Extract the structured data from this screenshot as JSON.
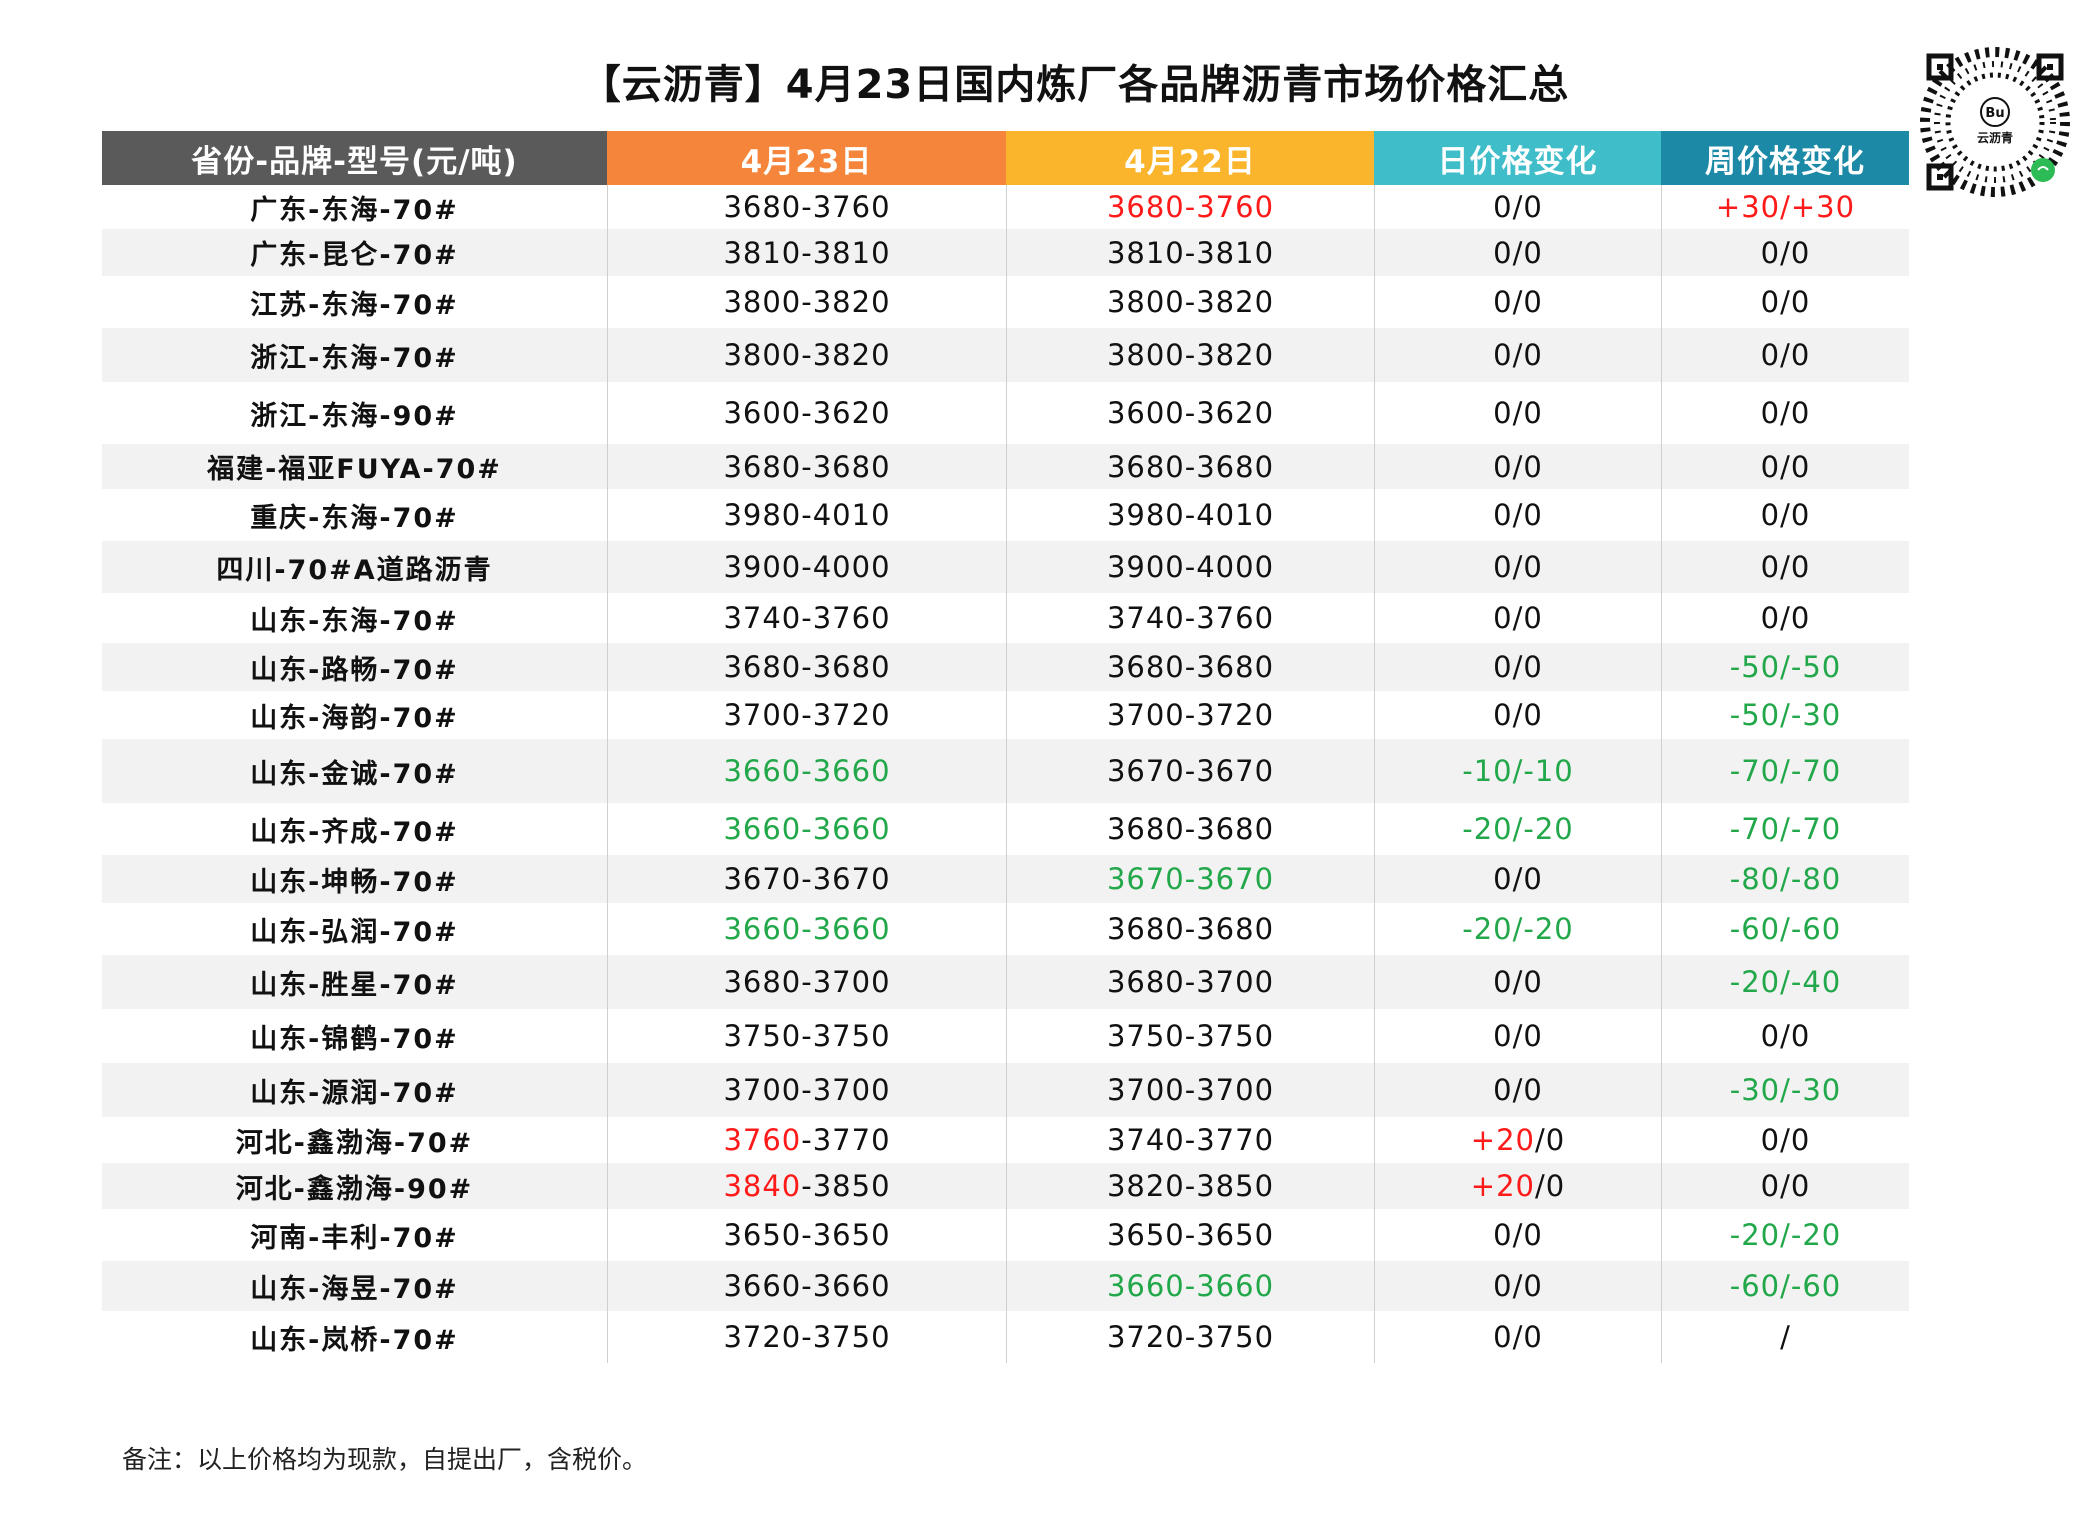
{
  "title": "【云沥青】4月23日国内炼厂各品牌沥青市场价格汇总",
  "qr": {
    "brand": "云沥青",
    "icon": "qr-code-icon"
  },
  "colors": {
    "header_col0": "#5a5a5a",
    "header_col1": "#f5853a",
    "header_col2": "#fbb52c",
    "header_col3": "#3fbdc9",
    "header_col4": "#1c89a6",
    "up": "#ff1a1a",
    "down": "#22a84a"
  },
  "headers": [
    "省份-品牌-型号(元/吨)",
    "4月23日",
    "4月22日",
    "日价格变化",
    "周价格变化"
  ],
  "rows": [
    {
      "label": "广东-东海-70#",
      "d23": [
        "3680-3760",
        "k"
      ],
      "d22": [
        "3680-3760",
        "r"
      ],
      "day": [
        "0/0",
        "k"
      ],
      "week": [
        "+30/+30",
        "r"
      ]
    },
    {
      "label": "广东-昆仑-70#",
      "d23": [
        "3810-3810",
        "k"
      ],
      "d22": [
        "3810-3810",
        "k"
      ],
      "day": [
        "0/0",
        "k"
      ],
      "week": [
        "0/0",
        "k"
      ]
    },
    {
      "label": "江苏-东海-70#",
      "d23": [
        "3800-3820",
        "k"
      ],
      "d22": [
        "3800-3820",
        "k"
      ],
      "day": [
        "0/0",
        "k"
      ],
      "week": [
        "0/0",
        "k"
      ]
    },
    {
      "label": "浙江-东海-70#",
      "d23": [
        "3800-3820",
        "k"
      ],
      "d22": [
        "3800-3820",
        "k"
      ],
      "day": [
        "0/0",
        "k"
      ],
      "week": [
        "0/0",
        "k"
      ]
    },
    {
      "label": "浙江-东海-90#",
      "d23": [
        "3600-3620",
        "k"
      ],
      "d22": [
        "3600-3620",
        "k"
      ],
      "day": [
        "0/0",
        "k"
      ],
      "week": [
        "0/0",
        "k"
      ]
    },
    {
      "label": "福建-福亚FUYA-70#",
      "d23": [
        "3680-3680",
        "k"
      ],
      "d22": [
        "3680-3680",
        "k"
      ],
      "day": [
        "0/0",
        "k"
      ],
      "week": [
        "0/0",
        "k"
      ]
    },
    {
      "label": "重庆-东海-70#",
      "d23": [
        "3980-4010",
        "k"
      ],
      "d22": [
        "3980-4010",
        "k"
      ],
      "day": [
        "0/0",
        "k"
      ],
      "week": [
        "0/0",
        "k"
      ]
    },
    {
      "label": "四川-70#A道路沥青",
      "d23": [
        "3900-4000",
        "k"
      ],
      "d22": [
        "3900-4000",
        "k"
      ],
      "day": [
        "0/0",
        "k"
      ],
      "week": [
        "0/0",
        "k"
      ]
    },
    {
      "label": "山东-东海-70#",
      "d23": [
        "3740-3760",
        "k"
      ],
      "d22": [
        "3740-3760",
        "k"
      ],
      "day": [
        "0/0",
        "k"
      ],
      "week": [
        "0/0",
        "k"
      ]
    },
    {
      "label": "山东-路畅-70#",
      "d23": [
        "3680-3680",
        "k"
      ],
      "d22": [
        "3680-3680",
        "k"
      ],
      "day": [
        "0/0",
        "k"
      ],
      "week": [
        "-50/-50",
        "g"
      ]
    },
    {
      "label": "山东-海韵-70#",
      "d23": [
        "3700-3720",
        "k"
      ],
      "d22": [
        "3700-3720",
        "k"
      ],
      "day": [
        "0/0",
        "k"
      ],
      "week": [
        "-50/-30",
        "g"
      ]
    },
    {
      "label": "山东-金诚-70#",
      "d23": [
        "3660-3660",
        "g"
      ],
      "d22": [
        "3670-3670",
        "k"
      ],
      "day": [
        "-10/-10",
        "g"
      ],
      "week": [
        "-70/-70",
        "g"
      ]
    },
    {
      "label": "山东-齐成-70#",
      "d23": [
        "3660-3660",
        "g"
      ],
      "d22": [
        "3680-3680",
        "k"
      ],
      "day": [
        "-20/-20",
        "g"
      ],
      "week": [
        "-70/-70",
        "g"
      ]
    },
    {
      "label": "山东-坤畅-70#",
      "d23": [
        "3670-3670",
        "k"
      ],
      "d22": [
        "3670-3670",
        "g"
      ],
      "day": [
        "0/0",
        "k"
      ],
      "week": [
        "-80/-80",
        "g"
      ]
    },
    {
      "label": "山东-弘润-70#",
      "d23": [
        "3660-3660",
        "g"
      ],
      "d22": [
        "3680-3680",
        "k"
      ],
      "day": [
        "-20/-20",
        "g"
      ],
      "week": [
        "-60/-60",
        "g"
      ]
    },
    {
      "label": "山东-胜星-70#",
      "d23": [
        "3680-3700",
        "k"
      ],
      "d22": [
        "3680-3700",
        "k"
      ],
      "day": [
        "0/0",
        "k"
      ],
      "week": [
        "-20/-40",
        "g"
      ]
    },
    {
      "label": "山东-锦鹤-70#",
      "d23": [
        "3750-3750",
        "k"
      ],
      "d22": [
        "3750-3750",
        "k"
      ],
      "day": [
        "0/0",
        "k"
      ],
      "week": [
        "0/0",
        "k"
      ]
    },
    {
      "label": "山东-源润-70#",
      "d23": [
        "3700-3700",
        "k"
      ],
      "d22": [
        "3700-3700",
        "k"
      ],
      "day": [
        "0/0",
        "k"
      ],
      "week": [
        "-30/-30",
        "g"
      ]
    },
    {
      "label": "河北-鑫渤海-70#",
      "d23": [
        "3760-3770",
        "p1"
      ],
      "d22": [
        "3740-3770",
        "k"
      ],
      "day": [
        "+20/0",
        "p1"
      ],
      "week": [
        "0/0",
        "k"
      ]
    },
    {
      "label": "河北-鑫渤海-90#",
      "d23": [
        "3840-3850",
        "p1"
      ],
      "d22": [
        "3820-3850",
        "k"
      ],
      "day": [
        "+20/0",
        "p1"
      ],
      "week": [
        "0/0",
        "k"
      ]
    },
    {
      "label": "河南-丰利-70#",
      "d23": [
        "3650-3650",
        "k"
      ],
      "d22": [
        "3650-3650",
        "k"
      ],
      "day": [
        "0/0",
        "k"
      ],
      "week": [
        "-20/-20",
        "g"
      ]
    },
    {
      "label": "山东-海昱-70#",
      "d23": [
        "3660-3660",
        "k"
      ],
      "d22": [
        "3660-3660",
        "g"
      ],
      "day": [
        "0/0",
        "k"
      ],
      "week": [
        "-60/-60",
        "g"
      ]
    },
    {
      "label": "山东-岚桥-70#",
      "d23": [
        "3720-3750",
        "k"
      ],
      "d22": [
        "3720-3750",
        "k"
      ],
      "day": [
        "0/0",
        "k"
      ],
      "week": [
        "/",
        "k"
      ]
    }
  ],
  "note": "备注：以上价格均为现款，自提出厂，含税价。"
}
